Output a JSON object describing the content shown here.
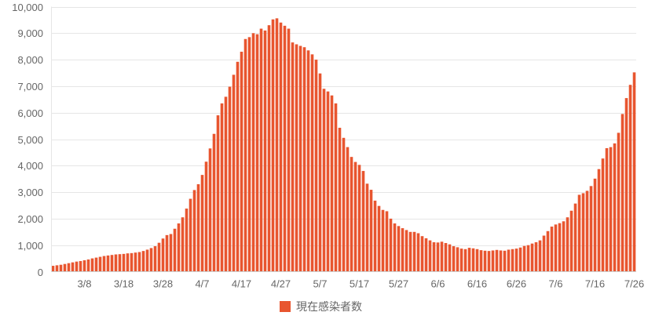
{
  "chart_data": {
    "type": "bar",
    "title": "",
    "xlabel": "",
    "ylabel": "",
    "ylim": [
      0,
      10000
    ],
    "grid": true,
    "legend_position": "bottom-center",
    "y_ticks": [
      "0",
      "1,000",
      "2,000",
      "3,000",
      "4,000",
      "5,000",
      "6,000",
      "7,000",
      "8,000",
      "9,000",
      "10,000"
    ],
    "x_ticks": [
      {
        "label": "3/8",
        "index": 8
      },
      {
        "label": "3/18",
        "index": 18
      },
      {
        "label": "3/28",
        "index": 28
      },
      {
        "label": "4/7",
        "index": 38
      },
      {
        "label": "4/17",
        "index": 48
      },
      {
        "label": "4/27",
        "index": 58
      },
      {
        "label": "5/7",
        "index": 68
      },
      {
        "label": "5/17",
        "index": 78
      },
      {
        "label": "5/27",
        "index": 88
      },
      {
        "label": "6/6",
        "index": 98
      },
      {
        "label": "6/16",
        "index": 108
      },
      {
        "label": "6/26",
        "index": 118
      },
      {
        "label": "7/6",
        "index": 128
      },
      {
        "label": "7/16",
        "index": 138
      },
      {
        "label": "7/26",
        "index": 148
      }
    ],
    "series": [
      {
        "name": "現在感染者数",
        "color": "#e8552f",
        "values": [
          220,
          240,
          260,
          290,
          320,
          350,
          380,
          400,
          430,
          460,
          500,
          530,
          560,
          590,
          610,
          630,
          650,
          660,
          670,
          690,
          700,
          720,
          740,
          780,
          830,
          890,
          960,
          1090,
          1250,
          1380,
          1420,
          1620,
          1820,
          2050,
          2380,
          2750,
          3080,
          3300,
          3650,
          4150,
          4650,
          5200,
          5900,
          6350,
          6600,
          6980,
          7430,
          7920,
          8300,
          8780,
          8850,
          9000,
          8960,
          9170,
          9100,
          9300,
          9520,
          9560,
          9400,
          9280,
          9170,
          8650,
          8580,
          8520,
          8470,
          8350,
          8200,
          8000,
          7480,
          6900,
          6800,
          6650,
          6350,
          5430,
          5050,
          4700,
          4330,
          4140,
          4030,
          3800,
          3320,
          3090,
          2680,
          2480,
          2330,
          2280,
          2000,
          1820,
          1720,
          1640,
          1570,
          1500,
          1500,
          1450,
          1340,
          1260,
          1180,
          1110,
          1100,
          1130,
          1080,
          1030,
          960,
          920,
          870,
          850,
          900,
          880,
          850,
          810,
          790,
          780,
          800,
          820,
          800,
          790,
          830,
          850,
          870,
          910,
          970,
          1000,
          1060,
          1110,
          1180,
          1360,
          1530,
          1700,
          1780,
          1830,
          1900,
          2050,
          2300,
          2570,
          2900,
          2960,
          3050,
          3230,
          3510,
          3870,
          4270,
          4660,
          4700,
          4840,
          5240,
          5950,
          6550,
          7050,
          7520
        ]
      }
    ]
  }
}
